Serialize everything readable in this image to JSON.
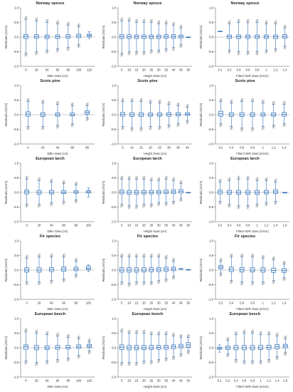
{
  "colors": {
    "box": "#2f6db5",
    "box_fill": "#e9f1fb",
    "outlier": "#555555",
    "zero_line": "#9a9a9a",
    "axis": "#555555"
  },
  "chart_data": [
    {
      "type": "boxplot",
      "title": "Norway spruce",
      "xlabel": "DBH class (cm)",
      "ylabel": "Residuals (m/cm)",
      "ylim": [
        -1.0,
        1.0
      ],
      "yticks": [
        "1.0",
        "0.5",
        "0.0",
        "-0.5",
        "-1.0"
      ],
      "categories": [
        "0",
        "20",
        "40",
        "60",
        "80",
        "100",
        "120"
      ],
      "values": [
        [
          -0.55,
          -0.05,
          0.02,
          0.08,
          0.6
        ],
        [
          -0.5,
          -0.04,
          0.02,
          0.08,
          0.55
        ],
        [
          -0.45,
          -0.05,
          0.01,
          0.07,
          0.5
        ],
        [
          -0.4,
          -0.05,
          0.01,
          0.07,
          0.45
        ],
        [
          -0.35,
          -0.04,
          0.02,
          0.08,
          0.4
        ],
        [
          -0.25,
          -0.02,
          0.04,
          0.1,
          0.35
        ],
        [
          -0.05,
          0.02,
          0.06,
          0.1,
          0.18
        ]
      ]
    },
    {
      "type": "boxplot",
      "title": "Norway spruce",
      "xlabel": "Height class (cm)",
      "ylabel": "Residuals (m/cm)",
      "ylim": [
        -1.0,
        1.0
      ],
      "yticks": [
        "1.0",
        "0.5",
        "0.0",
        "-0.5",
        "-1.0"
      ],
      "categories": [
        "5",
        "10",
        "15",
        "20",
        "25",
        "30",
        "35",
        "40",
        "45",
        "50"
      ],
      "values": [
        [
          -0.55,
          -0.05,
          0.02,
          0.08,
          0.55
        ],
        [
          -0.5,
          -0.05,
          0.01,
          0.08,
          0.55
        ],
        [
          -0.5,
          -0.05,
          0.01,
          0.07,
          0.5
        ],
        [
          -0.5,
          -0.05,
          0.01,
          0.07,
          0.5
        ],
        [
          -0.45,
          -0.05,
          0.01,
          0.07,
          0.5
        ],
        [
          -0.45,
          -0.05,
          0.01,
          0.07,
          0.45
        ],
        [
          -0.4,
          -0.04,
          0.02,
          0.08,
          0.45
        ],
        [
          -0.35,
          -0.04,
          0.02,
          0.08,
          0.4
        ],
        [
          -0.25,
          -0.03,
          0.02,
          0.07,
          0.3
        ],
        [
          0.0,
          0.0,
          0.0,
          0.0,
          0.0
        ]
      ]
    },
    {
      "type": "boxplot",
      "title": "Norway spruce",
      "xlabel": "Fitted HDR class (m/cm)",
      "ylabel": "Residuals (m/cm)",
      "ylim": [
        -1.0,
        1.0
      ],
      "yticks": [
        "1.0",
        "0.5",
        "0.0",
        "-0.5",
        "-1.0"
      ],
      "categories": [
        "0.1",
        "0.2",
        "0.4",
        "0.6",
        "0.8",
        "1",
        "1.2",
        "1.4"
      ],
      "values": [
        [
          0.2,
          0.2,
          0.2,
          0.2,
          0.2
        ],
        [
          -0.45,
          -0.05,
          0.01,
          0.07,
          0.45
        ],
        [
          -0.5,
          -0.05,
          0.01,
          0.07,
          0.5
        ],
        [
          -0.5,
          -0.05,
          0.01,
          0.07,
          0.5
        ],
        [
          -0.5,
          -0.05,
          0.01,
          0.07,
          0.5
        ],
        [
          -0.45,
          -0.05,
          0.01,
          0.07,
          0.45
        ],
        [
          -0.4,
          -0.05,
          0.01,
          0.07,
          0.45
        ],
        [
          -0.3,
          -0.04,
          0.02,
          0.08,
          0.3
        ]
      ]
    },
    {
      "type": "boxplot",
      "title": "Scots pine",
      "xlabel": "DBH class (cm)",
      "ylabel": "Residuals (m/cm)",
      "ylim": [
        -1.0,
        1.0
      ],
      "yticks": [
        "1.0",
        "0.5",
        "0.0",
        "-0.5",
        "-1.0"
      ],
      "categories": [
        "0",
        "20",
        "40",
        "60",
        "80"
      ],
      "values": [
        [
          -0.4,
          -0.05,
          0.02,
          0.1,
          0.45
        ],
        [
          -0.4,
          -0.06,
          0.0,
          0.07,
          0.4
        ],
        [
          -0.35,
          -0.05,
          0.0,
          0.06,
          0.35
        ],
        [
          -0.3,
          -0.04,
          0.0,
          0.06,
          0.3
        ],
        [
          -0.1,
          0.02,
          0.08,
          0.14,
          0.3
        ]
      ]
    },
    {
      "type": "boxplot",
      "title": "Scots pine",
      "xlabel": "Height class (cm)",
      "ylabel": "Residuals (m/cm)",
      "ylim": [
        -1.0,
        1.0
      ],
      "yticks": [
        "1.0",
        "0.5",
        "0.0",
        "-0.5",
        "-1.0"
      ],
      "categories": [
        "5",
        "10",
        "15",
        "20",
        "25",
        "30",
        "35",
        "40"
      ],
      "values": [
        [
          -0.4,
          -0.05,
          0.01,
          0.08,
          0.45
        ],
        [
          -0.45,
          -0.06,
          0.0,
          0.07,
          0.45
        ],
        [
          -0.45,
          -0.06,
          0.0,
          0.07,
          0.45
        ],
        [
          -0.4,
          -0.05,
          0.0,
          0.06,
          0.4
        ],
        [
          -0.4,
          -0.05,
          0.0,
          0.06,
          0.4
        ],
        [
          -0.35,
          -0.05,
          0.01,
          0.07,
          0.35
        ],
        [
          -0.3,
          -0.04,
          0.01,
          0.07,
          0.3
        ],
        [
          -0.2,
          -0.02,
          0.02,
          0.07,
          0.25
        ]
      ]
    },
    {
      "type": "boxplot",
      "title": "Scots pine",
      "xlabel": "Fitted HDR class (m/cm)",
      "ylabel": "Residuals (m/cm)",
      "ylim": [
        -1.0,
        1.0
      ],
      "yticks": [
        "1.0",
        "0.5",
        "0.0",
        "-0.5",
        "-1.0"
      ],
      "categories": [
        "0.2",
        "0.4",
        "0.6",
        "0.8",
        "1",
        "1.2",
        "1.4"
      ],
      "values": [
        [
          -0.3,
          -0.05,
          0.03,
          0.12,
          0.45
        ],
        [
          -0.4,
          -0.06,
          0.0,
          0.07,
          0.4
        ],
        [
          -0.45,
          -0.06,
          0.0,
          0.07,
          0.45
        ],
        [
          -0.45,
          -0.06,
          0.0,
          0.07,
          0.45
        ],
        [
          -0.4,
          -0.05,
          0.0,
          0.06,
          0.4
        ],
        [
          -0.35,
          -0.05,
          0.0,
          0.07,
          0.35
        ],
        [
          -0.3,
          -0.05,
          0.01,
          0.08,
          0.35
        ]
      ]
    },
    {
      "type": "boxplot",
      "title": "European larch",
      "xlabel": "DBH class (cm)",
      "ylabel": "Residuals (m/cm)",
      "ylim": [
        -1.0,
        1.0
      ],
      "yticks": [
        "1.0",
        "0.5",
        "0.0",
        "-0.5",
        "-1.0"
      ],
      "categories": [
        "0",
        "20",
        "40",
        "60",
        "80",
        "100"
      ],
      "values": [
        [
          -0.4,
          -0.05,
          0.02,
          0.08,
          0.45
        ],
        [
          -0.4,
          -0.06,
          0.0,
          0.07,
          0.4
        ],
        [
          -0.35,
          -0.05,
          0.0,
          0.07,
          0.35
        ],
        [
          -0.3,
          -0.04,
          0.0,
          0.06,
          0.3
        ],
        [
          -0.25,
          -0.03,
          0.01,
          0.06,
          0.25
        ],
        [
          -0.15,
          -0.02,
          0.02,
          0.06,
          0.15
        ]
      ]
    },
    {
      "type": "boxplot",
      "title": "European larch",
      "xlabel": "Height class (cm)",
      "ylabel": "Residuals (m/cm)",
      "ylim": [
        -1.0,
        1.0
      ],
      "yticks": [
        "1.0",
        "0.5",
        "0.0",
        "-0.5",
        "-1.0"
      ],
      "categories": [
        "5",
        "10",
        "15",
        "20",
        "25",
        "30",
        "35",
        "40",
        "45",
        "50"
      ],
      "values": [
        [
          -0.4,
          -0.05,
          0.01,
          0.08,
          0.45
        ],
        [
          -0.45,
          -0.06,
          0.0,
          0.07,
          0.45
        ],
        [
          -0.45,
          -0.06,
          0.0,
          0.07,
          0.45
        ],
        [
          -0.4,
          -0.05,
          0.0,
          0.07,
          0.45
        ],
        [
          -0.4,
          -0.05,
          0.0,
          0.07,
          0.4
        ],
        [
          -0.35,
          -0.05,
          0.01,
          0.07,
          0.4
        ],
        [
          -0.35,
          -0.04,
          0.01,
          0.08,
          0.45
        ],
        [
          -0.3,
          -0.04,
          0.02,
          0.09,
          0.4
        ],
        [
          -0.2,
          -0.02,
          0.04,
          0.1,
          0.3
        ],
        [
          0.0,
          0.0,
          0.0,
          0.0,
          0.0
        ]
      ]
    },
    {
      "type": "boxplot",
      "title": "European larch",
      "xlabel": "Fitted HDR class (m/cm)",
      "ylabel": "Residuals (m/cm)",
      "ylim": [
        -1.0,
        1.0
      ],
      "yticks": [
        "1.0",
        "0.5",
        "0.0",
        "-0.5",
        "-1.0"
      ],
      "categories": [
        "0.2",
        "0.4",
        "0.6",
        "0.8",
        "1",
        "1.2",
        "1.4",
        "1.6"
      ],
      "values": [
        [
          -0.3,
          -0.05,
          0.02,
          0.08,
          0.35
        ],
        [
          -0.4,
          -0.06,
          0.0,
          0.07,
          0.4
        ],
        [
          -0.45,
          -0.06,
          0.0,
          0.07,
          0.45
        ],
        [
          -0.45,
          -0.06,
          0.0,
          0.07,
          0.45
        ],
        [
          -0.4,
          -0.06,
          0.0,
          0.07,
          0.4
        ],
        [
          -0.35,
          -0.05,
          0.0,
          0.07,
          0.4
        ],
        [
          -0.3,
          -0.04,
          0.02,
          0.09,
          0.35
        ],
        [
          0.0,
          0.0,
          0.0,
          0.0,
          0.0
        ]
      ]
    },
    {
      "type": "boxplot",
      "title": "Fir species",
      "xlabel": "DBH class (cm)",
      "ylabel": "Residuals (m/cm)",
      "ylim": [
        -1.0,
        1.0
      ],
      "yticks": [
        "1.0",
        "0.5",
        "0.0",
        "-0.5",
        "-1.0"
      ],
      "categories": [
        "0",
        "20",
        "40",
        "60",
        "80",
        "100"
      ],
      "values": [
        [
          -0.4,
          -0.07,
          0.0,
          0.08,
          0.4
        ],
        [
          -0.4,
          -0.07,
          0.0,
          0.08,
          0.45
        ],
        [
          -0.35,
          -0.05,
          0.01,
          0.09,
          0.45
        ],
        [
          -0.3,
          -0.04,
          0.03,
          0.11,
          0.45
        ],
        [
          -0.15,
          -0.02,
          0.04,
          0.1,
          0.3
        ],
        [
          -0.05,
          0.02,
          0.06,
          0.14,
          0.18
        ]
      ]
    },
    {
      "type": "boxplot",
      "title": "Fir species",
      "xlabel": "Height class (cm)",
      "ylabel": "Residuals (m/cm)",
      "ylim": [
        -1.0,
        1.0
      ],
      "yticks": [
        "1.0",
        "0.5",
        "0.0",
        "-0.5",
        "-1.0"
      ],
      "categories": [
        "5",
        "10",
        "15",
        "20",
        "25",
        "30",
        "35",
        "40",
        "45",
        "50"
      ],
      "values": [
        [
          -0.4,
          -0.07,
          0.0,
          0.08,
          0.45
        ],
        [
          -0.45,
          -0.07,
          0.0,
          0.08,
          0.45
        ],
        [
          -0.4,
          -0.07,
          0.0,
          0.08,
          0.45
        ],
        [
          -0.4,
          -0.06,
          0.0,
          0.08,
          0.45
        ],
        [
          -0.4,
          -0.06,
          0.01,
          0.08,
          0.45
        ],
        [
          -0.35,
          -0.05,
          0.02,
          0.09,
          0.45
        ],
        [
          -0.3,
          -0.04,
          0.03,
          0.1,
          0.4
        ],
        [
          -0.2,
          -0.02,
          0.04,
          0.1,
          0.3
        ],
        [
          0.05,
          0.05,
          0.05,
          0.05,
          0.05
        ],
        [
          0.02,
          0.02,
          0.02,
          0.02,
          0.02
        ]
      ]
    },
    {
      "type": "boxplot",
      "title": "Fir species",
      "xlabel": "Fitted HDR class (m/cm)",
      "ylabel": "Residuals (m/cm)",
      "ylim": [
        -1.0,
        1.0
      ],
      "yticks": [
        "1.0",
        "0.5",
        "0.0",
        "-0.5",
        "-1.0"
      ],
      "categories": [
        "0.2",
        "0.4",
        "0.6",
        "0.8",
        "1",
        "1.2",
        "1.4"
      ],
      "values": [
        [
          -0.1,
          0.05,
          0.1,
          0.16,
          0.3
        ],
        [
          -0.35,
          -0.05,
          0.02,
          0.1,
          0.45
        ],
        [
          -0.4,
          -0.06,
          0.01,
          0.09,
          0.45
        ],
        [
          -0.4,
          -0.06,
          0.0,
          0.08,
          0.45
        ],
        [
          -0.4,
          -0.07,
          0.0,
          0.08,
          0.4
        ],
        [
          -0.35,
          -0.08,
          -0.01,
          0.07,
          0.35
        ],
        [
          -0.25,
          -0.08,
          -0.02,
          0.05,
          0.2
        ]
      ]
    },
    {
      "type": "boxplot",
      "title": "European beech",
      "xlabel": "DBH class (cm)",
      "ylabel": "Residuals (m/cm)",
      "ylim": [
        -1.0,
        1.0
      ],
      "yticks": [
        "1.0",
        "0.5",
        "0.0",
        "-0.5",
        "-1.0"
      ],
      "categories": [
        "0",
        "20",
        "40",
        "60",
        "80",
        "100",
        "120"
      ],
      "values": [
        [
          -0.45,
          -0.05,
          0.04,
          0.1,
          0.55
        ],
        [
          -0.5,
          -0.07,
          0.0,
          0.08,
          0.5
        ],
        [
          -0.45,
          -0.06,
          0.0,
          0.07,
          0.45
        ],
        [
          -0.4,
          -0.05,
          0.01,
          0.08,
          0.4
        ],
        [
          -0.35,
          -0.04,
          0.01,
          0.08,
          0.35
        ],
        [
          -0.25,
          -0.02,
          0.03,
          0.1,
          0.3
        ],
        [
          -0.1,
          0.02,
          0.07,
          0.12,
          0.2
        ]
      ]
    },
    {
      "type": "boxplot",
      "title": "European beech",
      "xlabel": "Height class (cm)",
      "ylabel": "Residuals (m/cm)",
      "ylim": [
        -1.0,
        1.0
      ],
      "yticks": [
        "1.0",
        "0.5",
        "0.0",
        "-0.5",
        "-1.0"
      ],
      "categories": [
        "5",
        "10",
        "15",
        "20",
        "25",
        "30",
        "35",
        "40",
        "45",
        "50"
      ],
      "values": [
        [
          -0.5,
          -0.06,
          0.02,
          0.1,
          0.55
        ],
        [
          -0.5,
          -0.07,
          0.0,
          0.08,
          0.5
        ],
        [
          -0.5,
          -0.07,
          0.0,
          0.08,
          0.5
        ],
        [
          -0.45,
          -0.06,
          0.0,
          0.08,
          0.5
        ],
        [
          -0.45,
          -0.06,
          0.0,
          0.08,
          0.45
        ],
        [
          -0.4,
          -0.05,
          0.01,
          0.08,
          0.45
        ],
        [
          -0.35,
          -0.05,
          0.02,
          0.09,
          0.45
        ],
        [
          -0.3,
          -0.03,
          0.04,
          0.1,
          0.4
        ],
        [
          -0.2,
          0.0,
          0.06,
          0.12,
          0.35
        ],
        [
          -0.1,
          0.02,
          0.1,
          0.18,
          0.35
        ]
      ]
    },
    {
      "type": "boxplot",
      "title": "European beech",
      "xlabel": "Fitted HDR class (m/cm)",
      "ylabel": "Residuals (m/cm)",
      "ylim": [
        -1.0,
        1.0
      ],
      "yticks": [
        "1.0",
        "0.5",
        "0.0",
        "-0.5",
        "-1.0"
      ],
      "categories": [
        "0.1",
        "0.2",
        "0.4",
        "0.6",
        "0.8",
        "1",
        "1.2",
        "1.4",
        "1.6"
      ],
      "values": [
        [
          -0.15,
          -0.05,
          -0.02,
          0.02,
          0.1
        ],
        [
          -0.2,
          -0.06,
          0.0,
          0.06,
          0.25
        ],
        [
          -0.4,
          -0.07,
          0.0,
          0.08,
          0.45
        ],
        [
          -0.45,
          -0.07,
          0.0,
          0.08,
          0.5
        ],
        [
          -0.45,
          -0.07,
          0.0,
          0.08,
          0.5
        ],
        [
          -0.45,
          -0.06,
          0.0,
          0.08,
          0.45
        ],
        [
          -0.4,
          -0.05,
          0.01,
          0.09,
          0.45
        ],
        [
          -0.3,
          -0.03,
          0.04,
          0.11,
          0.4
        ],
        [
          -0.15,
          0.0,
          0.06,
          0.12,
          0.3
        ]
      ]
    }
  ]
}
